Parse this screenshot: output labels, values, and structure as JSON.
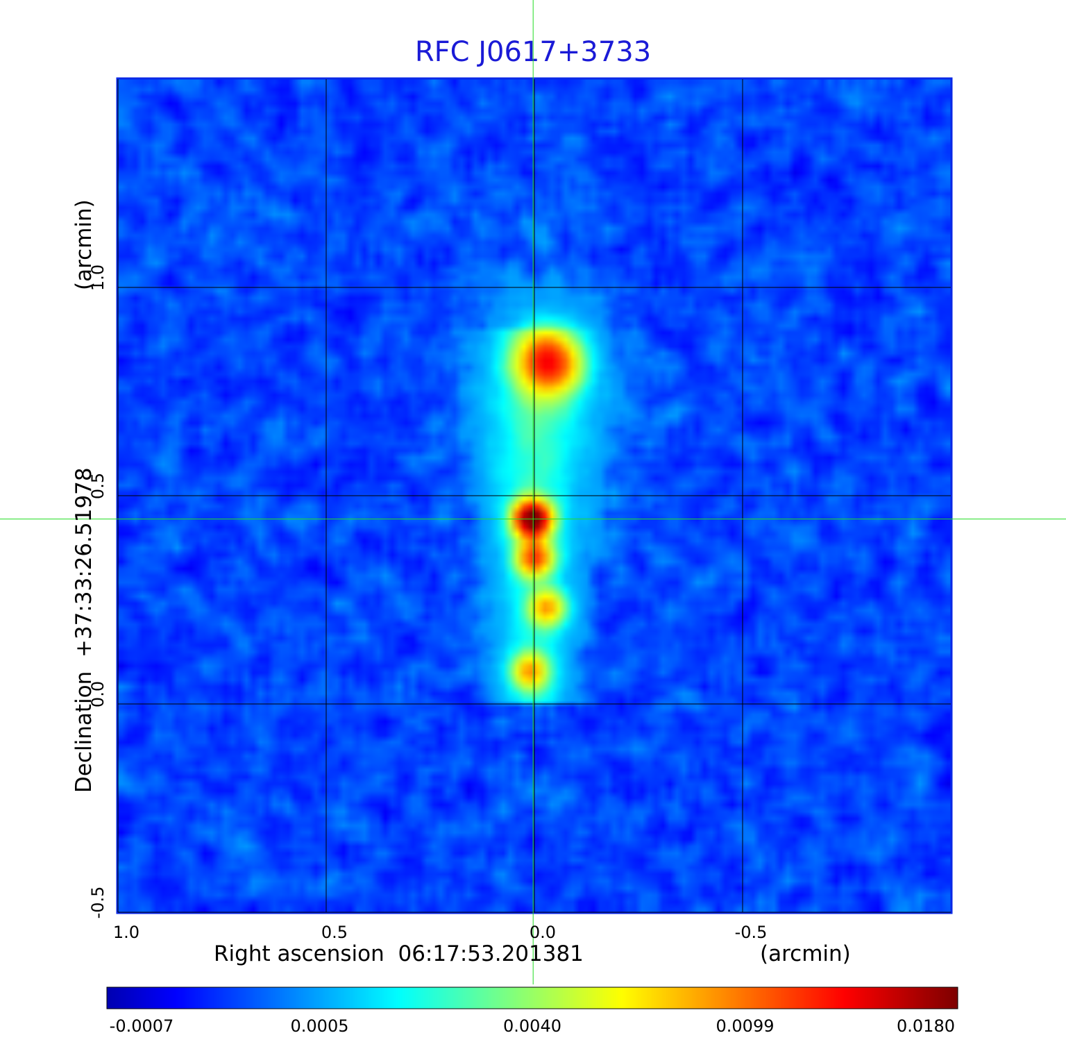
{
  "chart_data": {
    "type": "heatmap",
    "title": "RFC J0617+3733",
    "xlabel": "Right ascension  06:17:53.201381",
    "xunit": "(arcmin)",
    "ylabel": "Declination  +37:33:26.51978",
    "yunit": "(arcmin)",
    "x_axis": {
      "ticks": [
        1.0,
        0.5,
        0.0,
        -0.5
      ],
      "tick_labels": [
        "1.0",
        "0.5",
        "0.0",
        "-0.5"
      ],
      "range": [
        1.0,
        -1.0
      ]
    },
    "y_axis": {
      "ticks": [
        -0.5,
        0.0,
        0.5,
        1.0
      ],
      "tick_labels": [
        "-0.5",
        "0.0",
        "0.5",
        "1.0"
      ],
      "range": [
        -0.5,
        1.5
      ]
    },
    "grid": true,
    "crosshair": {
      "x": 0.003,
      "y": 0.444
    },
    "colorbar": {
      "ticks": [
        "-0.0007",
        "0.0005",
        "0.0040",
        "0.0099",
        "0.0180"
      ],
      "min": -0.0007,
      "max": 0.018,
      "colormap": "jet"
    },
    "components": [
      {
        "name": "core",
        "x": 0.005,
        "y": 0.444,
        "peak": 0.018
      },
      {
        "name": "jet knot 1",
        "x": 0.0,
        "y": 0.35,
        "peak": 0.0099
      },
      {
        "name": "jet knot 2",
        "x": -0.03,
        "y": 0.23,
        "peak": 0.0075
      },
      {
        "name": "jet knot 3",
        "x": 0.01,
        "y": 0.08,
        "peak": 0.0075
      },
      {
        "name": "northern lobe",
        "x": -0.035,
        "y": 0.82,
        "peak": 0.0115
      }
    ],
    "background_level": 0.0001
  },
  "colors": {
    "title": "#1a1ad6",
    "frame": "#0a28e6",
    "crosshair": "#22dd22",
    "grid": "#000000"
  }
}
